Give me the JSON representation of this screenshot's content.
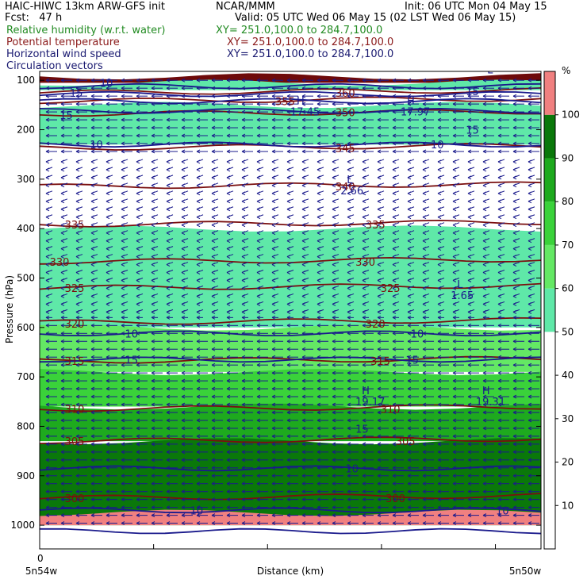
{
  "header": {
    "model": "HAIC-HIWC 13km ARW-GFS init",
    "org": "NCAR/MMM",
    "init": "Init: 06 UTC Mon 04 May 15",
    "fcst": "Fcst:   47 h",
    "valid": "Valid: 05 UTC Wed 06 May 15 (02 LST Wed 06 May 15)",
    "fields": [
      {
        "name": "Relative humidity (w.r.t. water)",
        "xy": "XY= 251.0,100.0 to 284.7,100.0",
        "color": "#228b22"
      },
      {
        "name": "Potential temperature",
        "xy": "XY= 251.0,100.0 to 284.7,100.0",
        "color": "#8b1a1a"
      },
      {
        "name": "Horizontal wind speed",
        "xy": "XY= 251.0,100.0 to 284.7,100.0",
        "color": "#191970"
      },
      {
        "name": "Circulation vectors",
        "xy": "XY= 251.0,100.0 to 284.7,100.0",
        "color": "#191970"
      }
    ]
  },
  "chart_data": {
    "type": "heatmap",
    "title": "Relative humidity (w.r.t. water), Potential temperature, Horizontal wind speed, Circulation vectors",
    "xlabel": "Distance (km)",
    "ylabel": "Pressure (hPa)",
    "x_tick_labels": [
      "0"
    ],
    "x_end_labels": [
      "5n54w",
      "5n50w"
    ],
    "y_ticks": [
      100,
      200,
      300,
      400,
      500,
      600,
      700,
      800,
      900,
      1000
    ],
    "colorbar": {
      "unit": "%",
      "levels": [
        10,
        20,
        30,
        40,
        50,
        60,
        70,
        80,
        90,
        100
      ],
      "bands": [
        {
          "from": 0,
          "to": 50,
          "color": "#ffffff"
        },
        {
          "from": 50,
          "to": 60,
          "color": "#5fe8a8"
        },
        {
          "from": 60,
          "to": 70,
          "color": "#64e864"
        },
        {
          "from": 70,
          "to": 80,
          "color": "#3ad23a"
        },
        {
          "from": 80,
          "to": 90,
          "color": "#1eaa1e"
        },
        {
          "from": 90,
          "to": 100,
          "color": "#0a780a"
        },
        {
          "from": 100,
          "to": 110,
          "color": "#f08080"
        }
      ]
    },
    "rh_layers": [
      {
        "p_top": 92,
        "p_bottom": 105,
        "color": "#6e0a0a"
      },
      {
        "p_top": 105,
        "p_bottom": 120,
        "color": "#5fe8a8"
      },
      {
        "p_top": 150,
        "p_bottom": 230,
        "color": "#5fe8a8"
      },
      {
        "p_top": 400,
        "p_bottom": 600,
        "color": "#5fe8a8"
      },
      {
        "p_top": 600,
        "p_bottom": 690,
        "color": "#64e864"
      },
      {
        "p_top": 690,
        "p_bottom": 760,
        "color": "#3ad23a"
      },
      {
        "p_top": 760,
        "p_bottom": 830,
        "color": "#1eaa1e"
      },
      {
        "p_top": 830,
        "p_bottom": 1000,
        "color": "#0a780a"
      },
      {
        "p_top": 975,
        "p_bottom": 1000,
        "color": "#f08080"
      }
    ],
    "theta_contours": [
      {
        "level": "335",
        "p": 392
      },
      {
        "level": "330",
        "p": 467
      },
      {
        "level": "325",
        "p": 520
      },
      {
        "level": "320",
        "p": 590
      },
      {
        "level": "315",
        "p": 668
      },
      {
        "level": "310",
        "p": 765
      },
      {
        "level": "305",
        "p": 830
      },
      {
        "level": "300",
        "p": 945
      },
      {
        "level": "340",
        "p": 315
      },
      {
        "level": "345",
        "p": 237
      },
      {
        "level": "350",
        "p": 168
      },
      {
        "level": "355",
        "p": 142
      },
      {
        "level": "360",
        "p": 125
      }
    ],
    "theta_labels": [
      {
        "text": "335",
        "x": 0.05,
        "p": 392
      },
      {
        "text": "335",
        "x": 0.65,
        "p": 392
      },
      {
        "text": "330",
        "x": 0.02,
        "p": 467
      },
      {
        "text": "330",
        "x": 0.63,
        "p": 467
      },
      {
        "text": "325",
        "x": 0.05,
        "p": 520
      },
      {
        "text": "325",
        "x": 0.68,
        "p": 520
      },
      {
        "text": "320",
        "x": 0.05,
        "p": 592
      },
      {
        "text": "320",
        "x": 0.65,
        "p": 592
      },
      {
        "text": "315",
        "x": 0.05,
        "p": 668
      },
      {
        "text": "315",
        "x": 0.66,
        "p": 668
      },
      {
        "text": "310",
        "x": 0.05,
        "p": 765
      },
      {
        "text": "310",
        "x": 0.68,
        "p": 765
      },
      {
        "text": "305",
        "x": 0.05,
        "p": 830
      },
      {
        "text": "305",
        "x": 0.71,
        "p": 830
      },
      {
        "text": "300",
        "x": 0.05,
        "p": 945
      },
      {
        "text": "300",
        "x": 0.69,
        "p": 945
      },
      {
        "text": "340",
        "x": 0.59,
        "p": 315
      },
      {
        "text": "345",
        "x": 0.59,
        "p": 237
      },
      {
        "text": "350",
        "x": 0.59,
        "p": 165
      },
      {
        "text": "355",
        "x": 0.47,
        "p": 142
      },
      {
        "text": "360",
        "x": 0.59,
        "p": 125
      }
    ],
    "speed_labels": [
      {
        "text": "10",
        "x": 0.1,
        "p": 230
      },
      {
        "text": "10",
        "x": 0.78,
        "p": 230
      },
      {
        "text": "10",
        "x": 0.17,
        "p": 612
      },
      {
        "text": "10",
        "x": 0.74,
        "p": 612
      },
      {
        "text": "10",
        "x": 0.61,
        "p": 885
      },
      {
        "text": "10",
        "x": 0.3,
        "p": 970
      },
      {
        "text": "10",
        "x": 0.91,
        "p": 970
      },
      {
        "text": "15",
        "x": 0.17,
        "p": 665
      },
      {
        "text": "15",
        "x": 0.73,
        "p": 665
      },
      {
        "text": "15",
        "x": 0.63,
        "p": 805
      },
      {
        "text": "15",
        "x": 0.85,
        "p": 200
      },
      {
        "text": "15",
        "x": 0.85,
        "p": 122
      },
      {
        "text": "15",
        "x": 0.04,
        "p": 170
      },
      {
        "text": "15",
        "x": 0.06,
        "p": 125
      },
      {
        "text": "10",
        "x": 0.12,
        "p": 105
      }
    ],
    "extrema": [
      {
        "type": "L",
        "value": "2.66",
        "x": 0.6,
        "p": 318
      },
      {
        "type": "L",
        "value": "1.65",
        "x": 0.82,
        "p": 530
      },
      {
        "type": "H",
        "value": "19.17",
        "x": 0.63,
        "p": 745
      },
      {
        "type": "H",
        "value": "19.31",
        "x": 0.87,
        "p": 745
      },
      {
        "type": "H",
        "value": "17.45",
        "x": 0.5,
        "p": 158
      },
      {
        "type": "H",
        "value": "17.97",
        "x": 0.72,
        "p": 158
      },
      {
        "type": "L",
        "value": "",
        "x": 0.88,
        "p": 96
      }
    ]
  }
}
